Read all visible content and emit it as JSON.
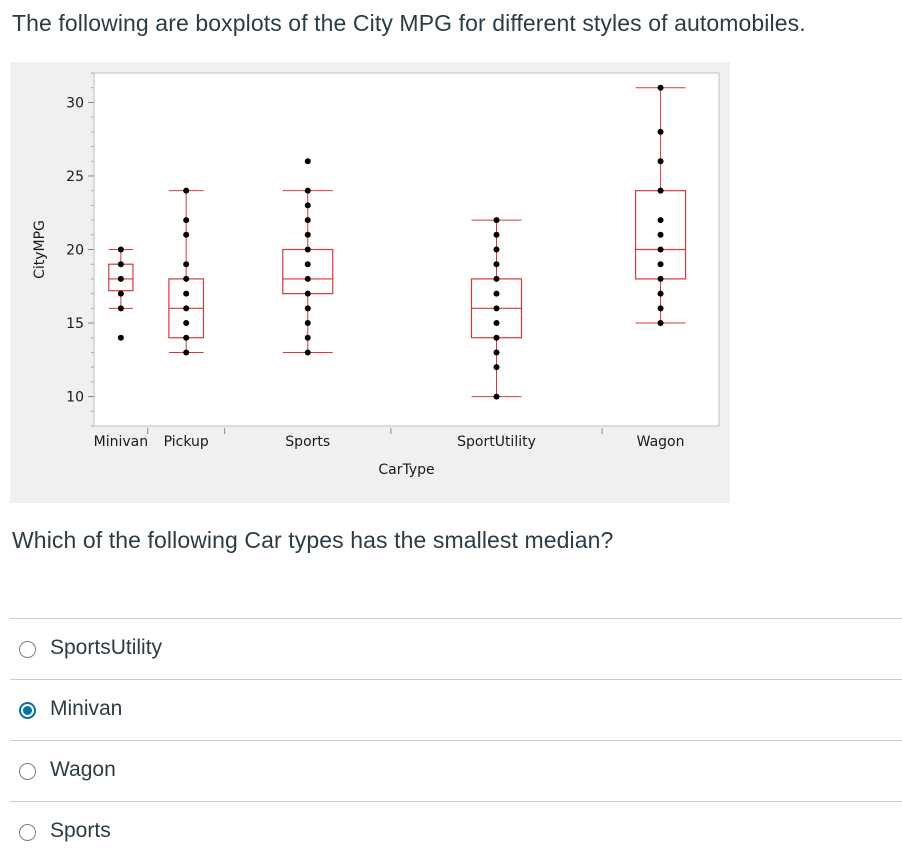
{
  "question": {
    "intro": "The following are boxplots of the City MPG for different styles of automobiles.",
    "prompt": "Which of the following Car types has the smallest median?"
  },
  "answers": [
    {
      "label": "SportsUtility",
      "selected": false
    },
    {
      "label": "Minivan",
      "selected": true
    },
    {
      "label": "Wagon",
      "selected": false
    },
    {
      "label": "Sports",
      "selected": false
    }
  ],
  "colors": {
    "box": "#d9383a",
    "point": "#000000",
    "accent": "#0770a3"
  },
  "chart_data": {
    "type": "boxplot",
    "title": "",
    "xlabel": "CarType",
    "ylabel": "CityMPG",
    "ylim": [
      8,
      32
    ],
    "yticks": [
      10,
      15,
      20,
      25,
      30
    ],
    "categories": [
      "Minivan",
      "Pickup",
      "Sports",
      "SportUtility",
      "Wagon"
    ],
    "category_shares": [
      0.086,
      0.123,
      0.266,
      0.338,
      0.187
    ],
    "boxes": [
      {
        "name": "Minivan",
        "min": 16,
        "q1": 17.2,
        "median": 18,
        "q3": 19,
        "max": 20,
        "points": [
          14,
          16,
          17,
          18,
          19,
          20
        ]
      },
      {
        "name": "Pickup",
        "min": 13,
        "q1": 14,
        "median": 16,
        "q3": 18,
        "max": 24,
        "points": [
          13,
          14,
          15,
          16,
          17,
          18,
          19,
          21,
          22,
          24
        ]
      },
      {
        "name": "Sports",
        "min": 13,
        "q1": 17,
        "median": 18,
        "q3": 20,
        "max": 24,
        "points": [
          13,
          14,
          15,
          16,
          17,
          18,
          19,
          20,
          21,
          22,
          23,
          24,
          26
        ]
      },
      {
        "name": "SportUtility",
        "min": 10,
        "q1": 14,
        "median": 16,
        "q3": 18,
        "max": 22,
        "points": [
          10,
          12,
          13,
          14,
          15,
          16,
          17,
          18,
          19,
          20,
          21,
          22
        ]
      },
      {
        "name": "Wagon",
        "min": 15,
        "q1": 18,
        "median": 20,
        "q3": 24,
        "max": 31,
        "points": [
          15,
          16,
          17,
          18,
          19,
          20,
          21,
          22,
          24,
          26,
          28,
          31
        ]
      }
    ]
  }
}
